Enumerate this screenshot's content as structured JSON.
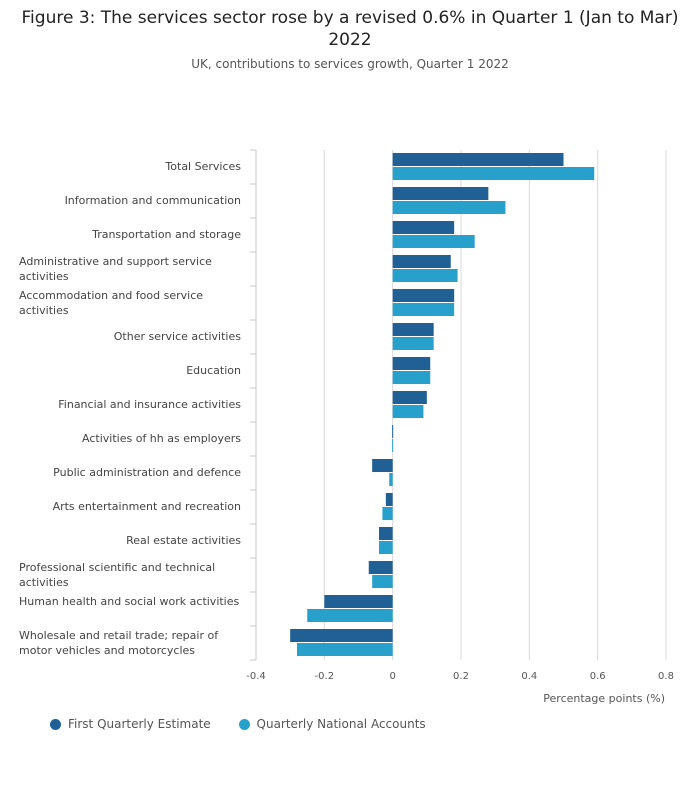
{
  "header": {
    "title": "Figure 3: The services sector rose by a revised 0.6% in Quarter 1 (Jan to Mar) 2022",
    "subtitle": "UK, contributions to services growth, Quarter 1 2022"
  },
  "chart_data": {
    "type": "bar",
    "orientation": "horizontal",
    "title": "Figure 3: The services sector rose by a revised 0.6% in Quarter 1 (Jan to Mar) 2022",
    "subtitle": "UK, contributions to services growth, Quarter 1 2022",
    "xlabel": "Percentage points (%)",
    "ylabel": "",
    "xlim": [
      -0.4,
      0.8
    ],
    "xticks": [
      -0.4,
      -0.2,
      0,
      0.2,
      0.4,
      0.6,
      0.8
    ],
    "xtick_labels": [
      "-0.4",
      "-0.2",
      "0",
      "0.2",
      "0.4",
      "0.6",
      "0.8"
    ],
    "grid": true,
    "legend_position": "bottom-left",
    "categories": [
      "Total Services",
      "Information and communication",
      "Transportation and storage",
      "Administrative and support service activities",
      "Accommodation and food service activities",
      "Other service activities",
      "Education",
      "Financial and insurance activities",
      "Activities of hh as employers",
      "Public administration and defence",
      "Arts entertainment and recreation",
      "Real estate activities",
      "Professional scientific and technical activities",
      "Human health and social work activities",
      "Wholesale and retail trade; repair of motor vehicles and motorcycles"
    ],
    "series": [
      {
        "name": "First Quarterly Estimate",
        "color": "#206095",
        "values": [
          0.5,
          0.28,
          0.18,
          0.17,
          0.18,
          0.12,
          0.11,
          0.1,
          0.0,
          -0.06,
          -0.02,
          -0.04,
          -0.07,
          -0.2,
          -0.3
        ]
      },
      {
        "name": "Quarterly National Accounts",
        "color": "#27a0cc",
        "values": [
          0.59,
          0.33,
          0.24,
          0.19,
          0.18,
          0.12,
          0.11,
          0.09,
          0.0,
          -0.01,
          -0.03,
          -0.04,
          -0.06,
          -0.25,
          -0.28
        ]
      }
    ]
  }
}
